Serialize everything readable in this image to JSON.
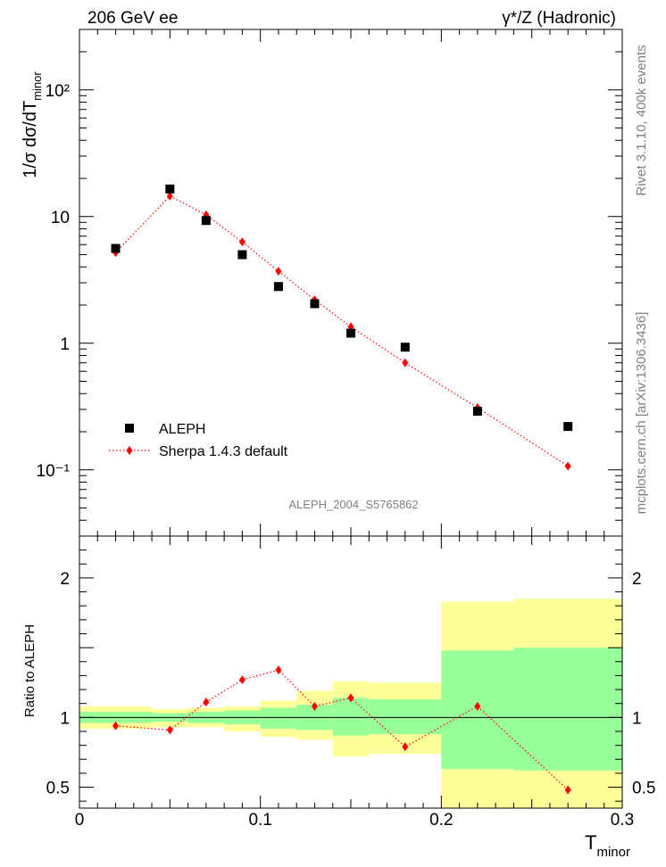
{
  "header": {
    "left": "206 GeV ee",
    "right": "γ*/Z (Hadronic)"
  },
  "side_labels": {
    "rivet": "Rivet 3.1.10,  400k events",
    "mcplots": "mcplots.cern.ch [arXiv:1306.3436]"
  },
  "analysis_id": "ALEPH_2004_S5765862",
  "colors": {
    "data": "#000000",
    "mc": "#ff0000",
    "band_outer": "#ffff99",
    "band_inner": "#99ff99"
  },
  "chart_data": [
    {
      "type": "scatter",
      "panel": "main",
      "ylabel_main": "1/σ  dσ/dT",
      "ylabel_sub": "minor",
      "yscale": "log",
      "ylim": [
        0.03,
        300
      ],
      "xlim": [
        0,
        0.3
      ],
      "y_tick_labels": [
        "10⁻¹",
        "1",
        "10",
        "10²"
      ],
      "legend_position": "bottom-left",
      "series": [
        {
          "name": "ALEPH",
          "style": "markers",
          "marker": "square",
          "color": "#000000",
          "x": [
            0.02,
            0.05,
            0.07,
            0.09,
            0.11,
            0.13,
            0.15,
            0.18,
            0.22,
            0.27
          ],
          "y": [
            5.6,
            16.5,
            9.3,
            5.0,
            2.8,
            2.05,
            1.2,
            0.93,
            0.29,
            0.22
          ]
        },
        {
          "name": "Sherpa 1.4.3 default",
          "style": "dotted-line-diamonds",
          "marker": "diamond",
          "color": "#ff0000",
          "x": [
            0.02,
            0.05,
            0.07,
            0.09,
            0.11,
            0.13,
            0.15,
            0.18,
            0.22,
            0.27
          ],
          "y": [
            5.2,
            14.5,
            10.3,
            6.3,
            3.7,
            2.2,
            1.35,
            0.7,
            0.31,
            0.107
          ]
        }
      ]
    },
    {
      "type": "line",
      "panel": "ratio",
      "ylabel": "Ratio to ALEPH",
      "xlabel_main": "T",
      "xlabel_sub": "minor",
      "ylim": [
        0.35,
        2.3
      ],
      "xlim": [
        0,
        0.3
      ],
      "y_tick_labels": [
        "0.5",
        "1",
        "2"
      ],
      "x_tick_labels": [
        "0",
        "0.1",
        "0.2",
        "0.3"
      ],
      "reference_line": 1,
      "bands": {
        "bin_edges": [
          0.0,
          0.04,
          0.06,
          0.08,
          0.1,
          0.12,
          0.14,
          0.16,
          0.2,
          0.24,
          0.3
        ],
        "outer": [
          [
            0.92,
            1.08
          ],
          [
            0.93,
            1.06
          ],
          [
            0.93,
            1.07
          ],
          [
            0.9,
            1.08
          ],
          [
            0.86,
            1.12
          ],
          [
            0.84,
            1.19
          ],
          [
            0.72,
            1.26
          ],
          [
            0.74,
            1.25
          ],
          [
            0.33,
            1.83
          ],
          [
            0.33,
            1.85
          ]
        ],
        "inner": [
          [
            0.96,
            1.04
          ],
          [
            0.97,
            1.03
          ],
          [
            0.96,
            1.04
          ],
          [
            0.95,
            1.05
          ],
          [
            0.92,
            1.07
          ],
          [
            0.91,
            1.09
          ],
          [
            0.87,
            1.14
          ],
          [
            0.88,
            1.13
          ],
          [
            0.63,
            1.48
          ],
          [
            0.62,
            1.5
          ]
        ]
      },
      "series": [
        {
          "name": "Sherpa 1.4.3 default",
          "color": "#ff0000",
          "x": [
            0.02,
            0.05,
            0.07,
            0.09,
            0.11,
            0.13,
            0.15,
            0.18,
            0.22,
            0.27
          ],
          "y": [
            0.94,
            0.91,
            1.11,
            1.27,
            1.34,
            1.08,
            1.14,
            0.79,
            1.08,
            0.48
          ]
        }
      ]
    }
  ]
}
